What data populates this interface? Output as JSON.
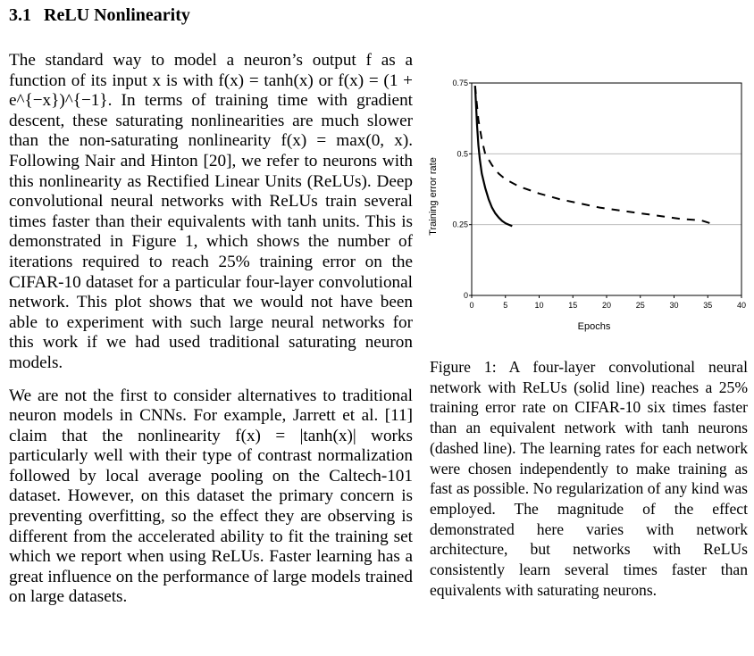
{
  "section": {
    "number": "3.1",
    "title": "ReLU Nonlinearity"
  },
  "left_text": {
    "p1": "The standard way to model a neuron’s output f as a function of its input x is with f(x) = tanh(x) or f(x) = (1 + e^{−x})^{−1}. In terms of training time with gradient descent, these saturating nonlinearities are much slower than the non-saturating nonlinearity f(x) = max(0, x). Following Nair and Hinton [20], we refer to neurons with this nonlinearity as Rectified Linear Units (ReLUs). Deep convolutional neural networks with ReLUs train several times faster than their equivalents with tanh units. This is demonstrated in Figure 1, which shows the number of iterations required to reach 25% training error on the CIFAR-10 dataset for a particular four-layer convolutional network. This plot shows that we would not have been able to experiment with such large neural networks for this work if we had used traditional saturating neuron models.",
    "p2": "We are not the first to consider alternatives to traditional neuron models in CNNs. For example, Jarrett et al. [11] claim that the nonlinearity f(x) = |tanh(x)| works particularly well with their type of contrast normalization followed by local average pooling on the Caltech-101 dataset. However, on this dataset the primary concern is preventing overfitting, so the effect they are observing is different from the accelerated ability to fit the training set which we report when using ReLUs. Faster learning has a great influence on the performance of large models trained on large datasets."
  },
  "caption": {
    "label": "Figure 1:",
    "text": "Figure 1: A four-layer convolutional neural network with ReLUs (solid line) reaches a 25% training error rate on CIFAR-10 six times faster than an equivalent network with tanh neurons (dashed line). The learning rates for each network were chosen independently to make training as fast as possible. No regularization of any kind was employed. The magnitude of the effect demonstrated here varies with network architecture, but networks with ReLUs consistently learn several times faster than equivalents with saturating neurons."
  },
  "chart_data": {
    "type": "line",
    "xlabel": "Epochs",
    "ylabel": "Training error rate",
    "xlim": [
      0,
      40
    ],
    "ylim": [
      0,
      0.75
    ],
    "xticks": [
      "0",
      "5",
      "10",
      "15",
      "20",
      "25",
      "30",
      "35",
      "40"
    ],
    "yticks": [
      "0",
      "0.25",
      "0.5",
      "0.75"
    ],
    "grid": "horizontal at y = 0.25, 0.5, 0.75",
    "series": [
      {
        "style": "solid",
        "x": [
          0.5,
          0.8,
          1.0,
          1.2,
          1.5,
          2.0,
          2.5,
          3.0,
          3.5,
          4.0,
          4.5,
          5.0,
          5.5,
          6.0
        ],
        "y": [
          0.74,
          0.6,
          0.53,
          0.48,
          0.43,
          0.38,
          0.34,
          0.31,
          0.29,
          0.275,
          0.263,
          0.255,
          0.25,
          0.245
        ]
      },
      {
        "style": "dashed",
        "x": [
          0.5,
          1,
          1.5,
          2,
          3,
          4,
          5,
          7,
          10,
          13,
          16,
          19,
          22,
          25,
          28,
          31,
          34,
          36
        ],
        "y": [
          0.74,
          0.62,
          0.55,
          0.5,
          0.46,
          0.43,
          0.41,
          0.385,
          0.36,
          0.34,
          0.325,
          0.31,
          0.3,
          0.29,
          0.28,
          0.27,
          0.265,
          0.25
        ]
      }
    ]
  }
}
